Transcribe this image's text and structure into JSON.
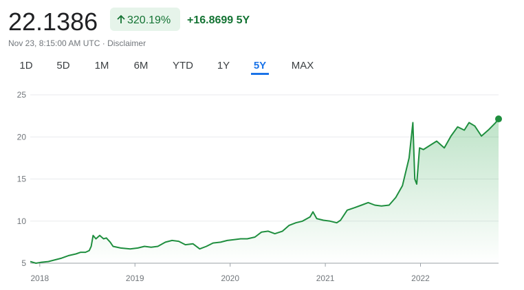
{
  "header": {
    "price": "22.1386",
    "change_percent": "320.19%",
    "change_value": "+16.8699",
    "period": "5Y",
    "timestamp": "Nov 23, 8:15:00 AM UTC",
    "disclaimer": "Disclaimer"
  },
  "tabs": {
    "items": [
      "1D",
      "5D",
      "1M",
      "6M",
      "YTD",
      "1Y",
      "5Y",
      "MAX"
    ],
    "active": 6
  },
  "chart_data": {
    "type": "line",
    "x": [
      2017.9,
      2017.96,
      2018.01,
      2018.09,
      2018.16,
      2018.23,
      2018.3,
      2018.38,
      2018.43,
      2018.48,
      2018.52,
      2018.54,
      2018.56,
      2018.59,
      2018.63,
      2018.67,
      2018.7,
      2018.74,
      2018.77,
      2018.85,
      2018.95,
      2019.03,
      2019.1,
      2019.17,
      2019.24,
      2019.32,
      2019.39,
      2019.46,
      2019.53,
      2019.61,
      2019.68,
      2019.75,
      2019.82,
      2019.9,
      2019.97,
      2020.04,
      2020.11,
      2020.18,
      2020.26,
      2020.33,
      2020.4,
      2020.47,
      2020.55,
      2020.62,
      2020.69,
      2020.76,
      2020.84,
      2020.87,
      2020.91,
      2020.98,
      2021.05,
      2021.12,
      2021.16,
      2021.23,
      2021.31,
      2021.38,
      2021.45,
      2021.52,
      2021.59,
      2021.67,
      2021.74,
      2021.81,
      2021.88,
      2021.92,
      2021.94,
      2021.96,
      2021.99,
      2022.03,
      2022.1,
      2022.17,
      2022.25,
      2022.32,
      2022.39,
      2022.46,
      2022.51,
      2022.57,
      2022.64,
      2022.72,
      2022.79,
      2022.82
    ],
    "series": [
      {
        "color": "#1e8e3e",
        "values": [
          5.2,
          5.0,
          5.1,
          5.2,
          5.4,
          5.6,
          5.9,
          6.1,
          6.3,
          6.3,
          6.5,
          7.0,
          8.3,
          7.9,
          8.3,
          7.9,
          8.0,
          7.5,
          7.0,
          6.8,
          6.7,
          6.8,
          7.0,
          6.9,
          7.0,
          7.5,
          7.7,
          7.6,
          7.2,
          7.3,
          6.7,
          7.0,
          7.4,
          7.5,
          7.7,
          7.8,
          7.9,
          7.9,
          8.1,
          8.7,
          8.8,
          8.5,
          8.8,
          9.5,
          9.8,
          10.0,
          10.5,
          11.1,
          10.3,
          10.1,
          10.0,
          9.8,
          10.1,
          11.3,
          11.6,
          11.9,
          12.2,
          11.9,
          11.8,
          11.9,
          12.8,
          14.2,
          17.5,
          21.7,
          15.0,
          14.4,
          18.7,
          18.5,
          19.0,
          19.5,
          18.7,
          20.1,
          21.2,
          20.8,
          21.7,
          21.3,
          20.1,
          20.9,
          21.7,
          22.1386
        ]
      }
    ],
    "xlim": [
      2017.9,
      2022.82
    ],
    "xticks": [
      2018,
      2019,
      2020,
      2021,
      2022
    ],
    "ylim": [
      5,
      25
    ],
    "yticks": [
      5,
      10,
      15,
      20,
      25
    ],
    "grid": true
  }
}
